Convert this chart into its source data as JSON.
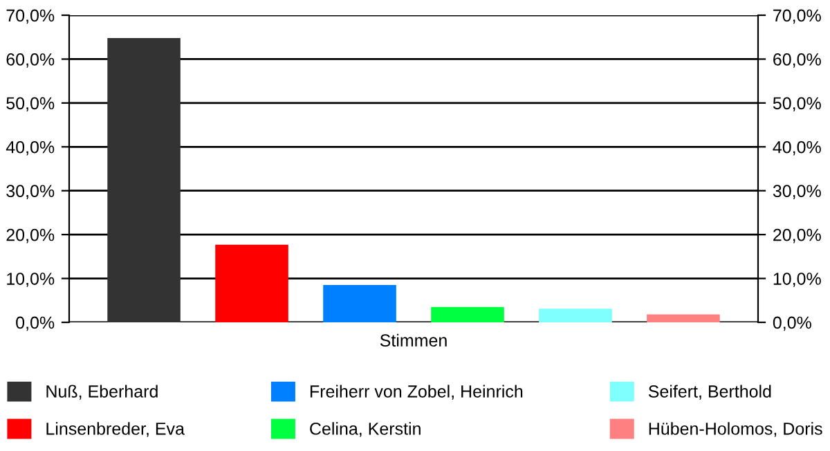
{
  "chart_data": {
    "type": "bar",
    "categories": [
      "Stimmen"
    ],
    "series": [
      {
        "name": "Nuß, Eberhard",
        "color": "#333333",
        "values": [
          64.8
        ]
      },
      {
        "name": "Linsenbreder, Eva",
        "color": "#ff0000",
        "values": [
          17.7
        ]
      },
      {
        "name": "Freiherr von Zobel, Heinrich",
        "color": "#0080ff",
        "values": [
          8.5
        ]
      },
      {
        "name": "Celina, Kerstin",
        "color": "#00ff40",
        "values": [
          3.5
        ]
      },
      {
        "name": "Seifert, Berthold",
        "color": "#80ffff",
        "values": [
          3.1
        ]
      },
      {
        "name": "Hüben-Holomos, Doris",
        "color": "#ff8080",
        "values": [
          1.8
        ]
      }
    ],
    "ylim": [
      0,
      70
    ],
    "yticks": [
      {
        "value": 0,
        "label": "0,0%"
      },
      {
        "value": 10,
        "label": "10,0%"
      },
      {
        "value": 20,
        "label": "20,0%"
      },
      {
        "value": 30,
        "label": "30,0%"
      },
      {
        "value": 40,
        "label": "40,0%"
      },
      {
        "value": 50,
        "label": "50,0%"
      },
      {
        "value": 60,
        "label": "60,0%"
      },
      {
        "value": 70,
        "label": "70,0%"
      }
    ],
    "grid": "y",
    "legend": "bottom"
  }
}
